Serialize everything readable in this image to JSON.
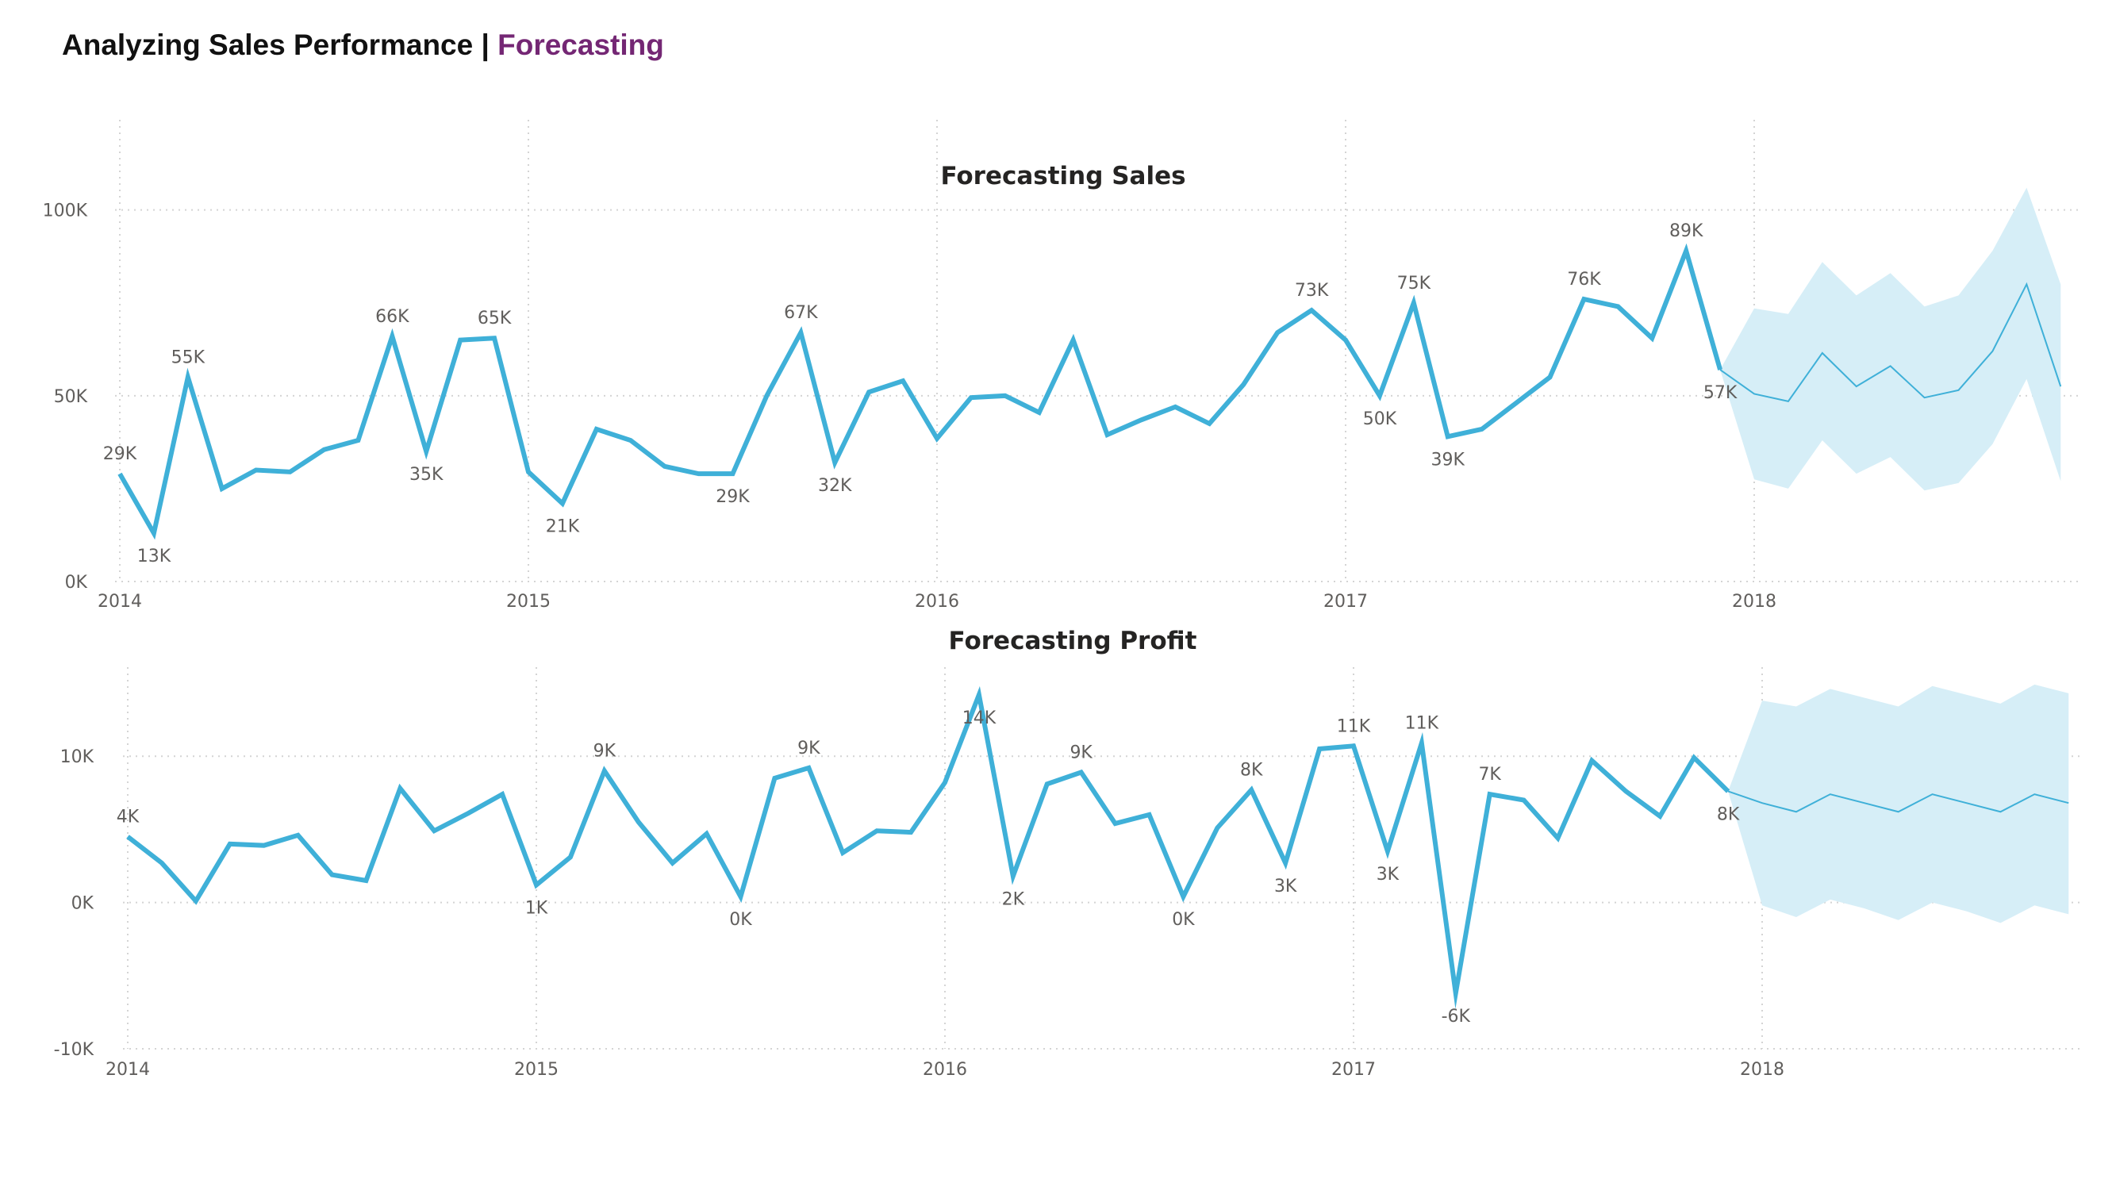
{
  "header": {
    "title_main": "Analyzing Sales Performance | ",
    "title_accent": "Forecasting"
  },
  "colors": {
    "series": "#3fb0d8",
    "band": "#d6eef7",
    "accent": "#742774",
    "text": "#605e5c"
  },
  "chart_data": [
    {
      "type": "line",
      "title": "Forecasting Sales",
      "xlabel": "",
      "ylabel": "",
      "x_ticks": [
        "2014",
        "2015",
        "2016",
        "2017",
        "2018"
      ],
      "y_ticks": [
        0,
        50000,
        100000
      ],
      "y_tick_labels": [
        "0K",
        "50K",
        "100K"
      ],
      "ylim": [
        0,
        120000
      ],
      "grid": true,
      "series": [
        {
          "values": [
            29000,
            13000,
            55000,
            25000,
            30000,
            29500,
            35500,
            38000,
            66000,
            35000,
            65000,
            65500,
            29500,
            21000,
            41000,
            38000,
            31000,
            29000,
            29000,
            50000,
            67000,
            32000,
            51000,
            54000,
            38500,
            49500,
            50000,
            45500,
            65000,
            39500,
            43500,
            47000,
            42500,
            53000,
            67000,
            73000,
            65000,
            50000,
            75000,
            39000,
            41000,
            48000,
            55000,
            76000,
            74000,
            65500,
            89000,
            57000
          ]
        }
      ],
      "forecast": {
        "values": [
          57000,
          50500,
          48500,
          61500,
          52500,
          58000,
          49500,
          51500,
          62000,
          80000,
          52500
        ],
        "upper": [
          57000,
          73500,
          72000,
          86000,
          77000,
          83000,
          74000,
          77000,
          89000,
          106000,
          80000
        ],
        "lower": [
          57000,
          27500,
          25000,
          38000,
          29000,
          33500,
          24500,
          26500,
          37000,
          54500,
          27000
        ]
      },
      "data_labels": [
        {
          "index": 0,
          "text": "29K",
          "pos": "above"
        },
        {
          "index": 1,
          "text": "13K",
          "pos": "below"
        },
        {
          "index": 2,
          "text": "55K",
          "pos": "above"
        },
        {
          "index": 8,
          "text": "66K",
          "pos": "above"
        },
        {
          "index": 9,
          "text": "35K",
          "pos": "below"
        },
        {
          "index": 11,
          "text": "65K",
          "pos": "above"
        },
        {
          "index": 13,
          "text": "21K",
          "pos": "below"
        },
        {
          "index": 18,
          "text": "29K",
          "pos": "below"
        },
        {
          "index": 20,
          "text": "67K",
          "pos": "above"
        },
        {
          "index": 21,
          "text": "32K",
          "pos": "below"
        },
        {
          "index": 35,
          "text": "73K",
          "pos": "above"
        },
        {
          "index": 37,
          "text": "50K",
          "pos": "below"
        },
        {
          "index": 38,
          "text": "75K",
          "pos": "above"
        },
        {
          "index": 39,
          "text": "39K",
          "pos": "below"
        },
        {
          "index": 43,
          "text": "76K",
          "pos": "above"
        },
        {
          "index": 46,
          "text": "89K",
          "pos": "above"
        },
        {
          "index": 47,
          "text": "57K",
          "pos": "below"
        }
      ]
    },
    {
      "type": "line",
      "title": "Forecasting Profit",
      "xlabel": "",
      "ylabel": "",
      "x_ticks": [
        "2014",
        "2015",
        "2016",
        "2017",
        "2018"
      ],
      "y_ticks": [
        -10000,
        0,
        10000
      ],
      "y_tick_labels": [
        "-10K",
        "0K",
        "10K"
      ],
      "ylim": [
        -10000,
        15000
      ],
      "grid": true,
      "series": [
        {
          "values": [
            4500,
            2700,
            100,
            4000,
            3900,
            4600,
            1900,
            1500,
            7800,
            4900,
            6100,
            7400,
            1200,
            3100,
            9000,
            5500,
            2700,
            4700,
            400,
            8500,
            9200,
            3400,
            4900,
            4800,
            8200,
            14200,
            1800,
            8100,
            8900,
            5400,
            6000,
            400,
            5100,
            7700,
            2700,
            10500,
            10700,
            3500,
            10900,
            -6200,
            7400,
            7000,
            4400,
            9700,
            7600,
            5900,
            9900,
            7600
          ]
        }
      ],
      "forecast": {
        "values": [
          7600,
          6800,
          6200,
          7400,
          6800,
          6200,
          7400,
          6800,
          6200,
          7400,
          6800
        ],
        "upper": [
          7600,
          13800,
          13400,
          14600,
          14000,
          13400,
          14800,
          14200,
          13600,
          14900,
          14300
        ],
        "lower": [
          7600,
          -200,
          -1000,
          200,
          -400,
          -1200,
          0,
          -600,
          -1400,
          -200,
          -800
        ]
      },
      "data_labels": [
        {
          "index": 0,
          "text": "4K",
          "pos": "above"
        },
        {
          "index": 12,
          "text": "1K",
          "pos": "below"
        },
        {
          "index": 14,
          "text": "9K",
          "pos": "above"
        },
        {
          "index": 18,
          "text": "0K",
          "pos": "below"
        },
        {
          "index": 20,
          "text": "9K",
          "pos": "above"
        },
        {
          "index": 25,
          "text": "14K",
          "pos": "below"
        },
        {
          "index": 26,
          "text": "2K",
          "pos": "below"
        },
        {
          "index": 28,
          "text": "9K",
          "pos": "above"
        },
        {
          "index": 31,
          "text": "0K",
          "pos": "below"
        },
        {
          "index": 33,
          "text": "8K",
          "pos": "above"
        },
        {
          "index": 34,
          "text": "3K",
          "pos": "below"
        },
        {
          "index": 36,
          "text": "11K",
          "pos": "above"
        },
        {
          "index": 37,
          "text": "3K",
          "pos": "below"
        },
        {
          "index": 38,
          "text": "11K",
          "pos": "above"
        },
        {
          "index": 39,
          "text": "-6K",
          "pos": "below"
        },
        {
          "index": 40,
          "text": "7K",
          "pos": "above"
        },
        {
          "index": 47,
          "text": "8K",
          "pos": "below"
        }
      ]
    }
  ]
}
